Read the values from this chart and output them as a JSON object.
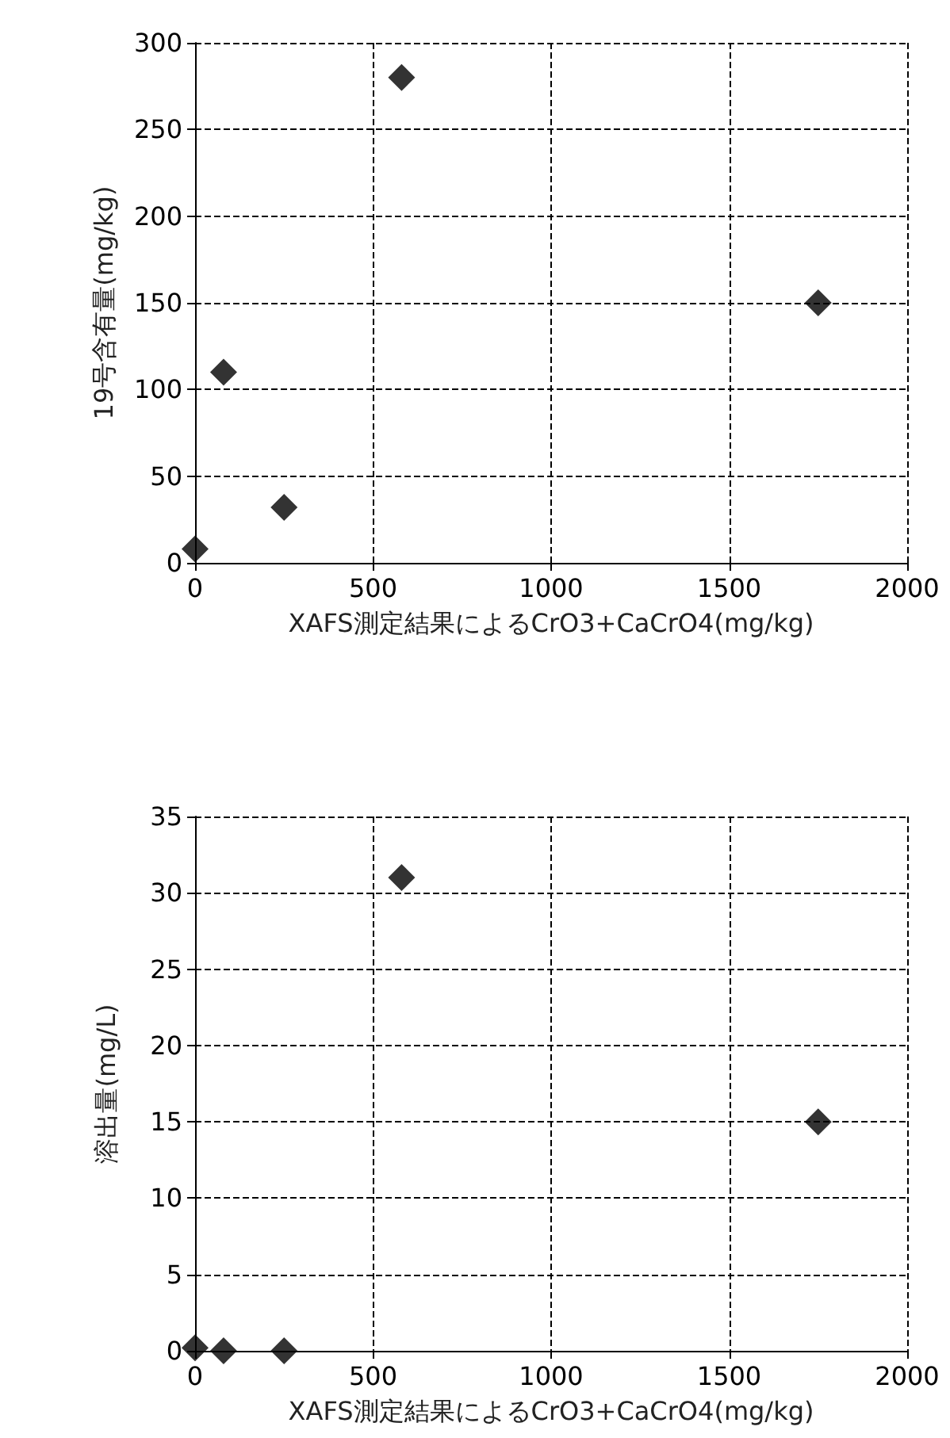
{
  "chart_data": [
    {
      "type": "scatter",
      "xlabel": "XAFS測定結果によるCrO3+CaCrO4(mg/kg)",
      "ylabel": "19号含有量(mg/kg)",
      "x": [
        0,
        80,
        250,
        580,
        1750
      ],
      "values": [
        8,
        110,
        32,
        280,
        150
      ],
      "color": "#000000",
      "marker": "diamond",
      "xlim": [
        0,
        2000
      ],
      "xticks": [
        0,
        500,
        1000,
        1500,
        2000
      ],
      "ylim": [
        0,
        300
      ],
      "yticks": [
        0,
        50,
        100,
        150,
        200,
        250,
        300
      ],
      "grid": true
    },
    {
      "type": "scatter",
      "xlabel": "XAFS測定結果によるCrO3+CaCrO4(mg/kg)",
      "ylabel": "溶出量(mg/L)",
      "x": [
        0,
        80,
        250,
        580,
        1750
      ],
      "values": [
        0.2,
        0,
        0,
        31,
        15
      ],
      "color": "#000000",
      "marker": "diamond",
      "xlim": [
        0,
        2000
      ],
      "xticks": [
        0,
        500,
        1000,
        1500,
        2000
      ],
      "ylim": [
        0,
        35
      ],
      "yticks": [
        0,
        5,
        10,
        15,
        20,
        25,
        30,
        35
      ],
      "grid": true
    }
  ]
}
